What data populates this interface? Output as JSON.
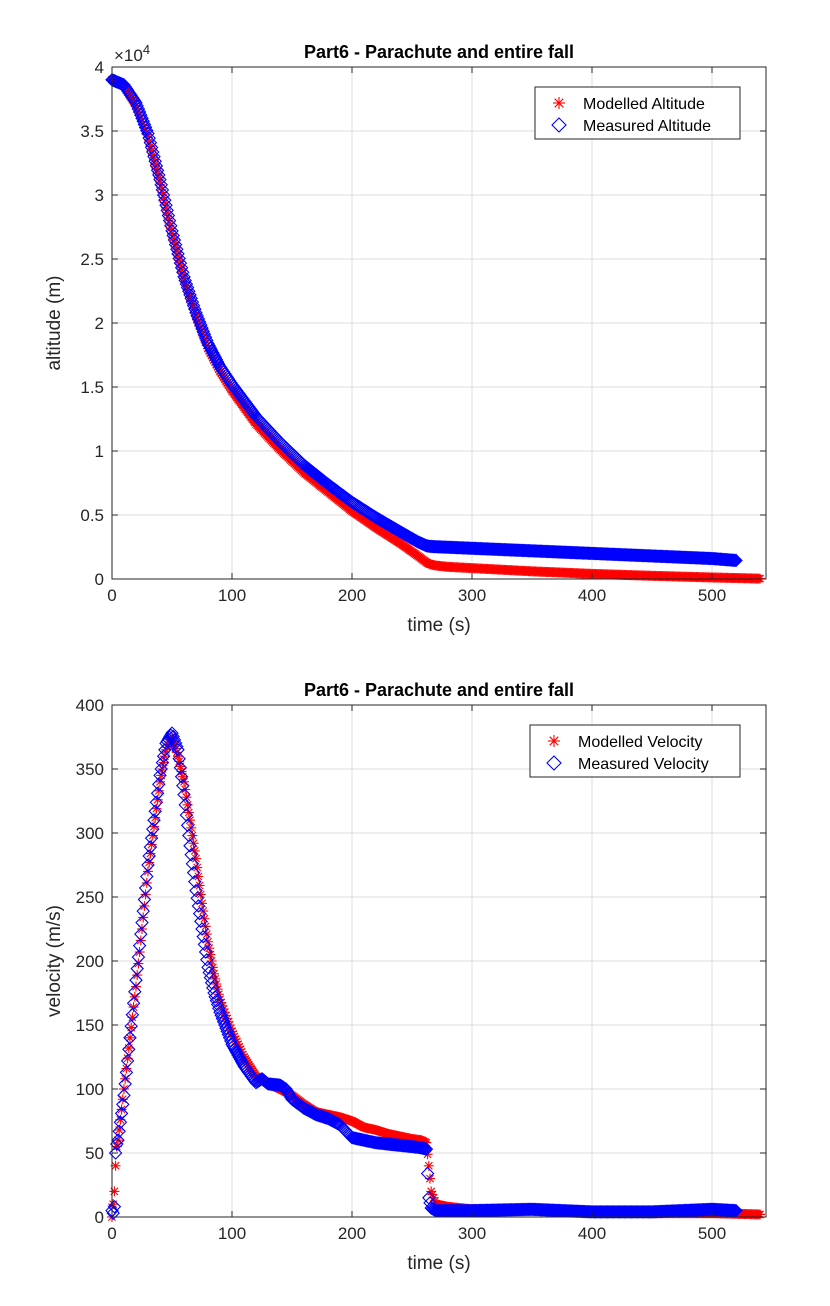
{
  "chart_data": [
    {
      "type": "scatter",
      "title": "Part6 - Parachute and entire fall",
      "xlabel": "time (s)",
      "ylabel": "altitude (m)",
      "y_exponent_label": "×10",
      "y_exponent_power": "4",
      "xlim": [
        0,
        545
      ],
      "ylim": [
        0,
        40000
      ],
      "xticks": [
        0,
        100,
        200,
        300,
        400,
        500
      ],
      "yticks": [
        0,
        5000,
        10000,
        15000,
        20000,
        25000,
        30000,
        35000,
        40000
      ],
      "xtick_labels": [
        "0",
        "100",
        "200",
        "300",
        "400",
        "500"
      ],
      "ytick_labels": [
        "0",
        "0.5",
        "1",
        "1.5",
        "2",
        "2.5",
        "3",
        "3.5",
        "4"
      ],
      "grid": true,
      "legend_position": "top-right",
      "colors": {
        "modelled": "#ff0000",
        "measured": "#0000ff"
      },
      "series": [
        {
          "name": "Modelled Altitude",
          "marker": "asterisk",
          "x": [
            0,
            10,
            20,
            30,
            40,
            50,
            60,
            70,
            80,
            90,
            100,
            120,
            140,
            160,
            180,
            200,
            220,
            240,
            255,
            262,
            265,
            270,
            280,
            300,
            350,
            400,
            450,
            500,
            540
          ],
          "y": [
            39000,
            38500,
            37000,
            34500,
            31000,
            27000,
            23500,
            20500,
            18000,
            16200,
            14700,
            12100,
            10100,
            8300,
            6800,
            5300,
            4000,
            2800,
            1800,
            1300,
            1150,
            1050,
            950,
            850,
            600,
            400,
            250,
            120,
            30
          ]
        },
        {
          "name": "Measured Altitude",
          "marker": "diamond",
          "x": [
            0,
            10,
            20,
            30,
            40,
            50,
            60,
            70,
            80,
            90,
            100,
            120,
            140,
            160,
            180,
            200,
            220,
            240,
            255,
            262,
            265,
            270,
            280,
            300,
            350,
            400,
            450,
            500,
            520
          ],
          "y": [
            39000,
            38600,
            37200,
            34800,
            31200,
            27200,
            23600,
            20800,
            18400,
            16600,
            15200,
            12700,
            10700,
            8900,
            7400,
            6000,
            4800,
            3700,
            2900,
            2600,
            2550,
            2520,
            2480,
            2400,
            2200,
            2000,
            1800,
            1600,
            1450
          ]
        }
      ]
    },
    {
      "type": "scatter",
      "title": "Part6 - Parachute and entire fall",
      "xlabel": "time (s)",
      "ylabel": "velocity (m/s)",
      "xlim": [
        0,
        545
      ],
      "ylim": [
        0,
        400
      ],
      "xticks": [
        0,
        100,
        200,
        300,
        400,
        500
      ],
      "yticks": [
        0,
        50,
        100,
        150,
        200,
        250,
        300,
        350,
        400
      ],
      "xtick_labels": [
        "0",
        "100",
        "200",
        "300",
        "400",
        "500"
      ],
      "ytick_labels": [
        "0",
        "50",
        "100",
        "150",
        "200",
        "250",
        "300",
        "350",
        "400"
      ],
      "grid": true,
      "legend_position": "top-right",
      "colors": {
        "modelled": "#ff0000",
        "measured": "#0000ff"
      },
      "series": [
        {
          "name": "Modelled Velocity",
          "marker": "asterisk",
          "x": [
            0,
            1,
            2,
            3,
            4,
            5,
            10,
            20,
            30,
            40,
            45,
            50,
            55,
            60,
            65,
            70,
            75,
            80,
            85,
            90,
            100,
            110,
            120,
            130,
            140,
            150,
            160,
            170,
            180,
            190,
            200,
            210,
            220,
            230,
            240,
            250,
            258,
            262,
            264,
            266,
            270,
            280,
            300,
            350,
            400,
            450,
            500,
            540
          ],
          "y": [
            0,
            10,
            20,
            40,
            55,
            60,
            100,
            180,
            270,
            340,
            365,
            375,
            360,
            340,
            310,
            280,
            245,
            215,
            190,
            170,
            145,
            125,
            110,
            104,
            100,
            95,
            88,
            82,
            80,
            78,
            75,
            70,
            68,
            65,
            63,
            61,
            60,
            58,
            40,
            20,
            10,
            8,
            6,
            5,
            4,
            3,
            3,
            2
          ]
        },
        {
          "name": "Measured Velocity",
          "marker": "diamond",
          "x": [
            0,
            1,
            2,
            3,
            4,
            5,
            10,
            20,
            30,
            40,
            45,
            50,
            55,
            60,
            65,
            70,
            75,
            80,
            85,
            90,
            100,
            110,
            120,
            125,
            130,
            140,
            145,
            150,
            160,
            170,
            180,
            190,
            200,
            210,
            220,
            230,
            240,
            250,
            258,
            262,
            264,
            266,
            270,
            280,
            300,
            350,
            400,
            450,
            500,
            520
          ],
          "y": [
            5,
            3,
            8,
            50,
            57,
            60,
            95,
            185,
            275,
            345,
            370,
            378,
            365,
            330,
            290,
            255,
            225,
            195,
            175,
            160,
            135,
            118,
            105,
            108,
            104,
            103,
            100,
            92,
            85,
            80,
            77,
            72,
            62,
            60,
            58,
            57,
            56,
            55,
            54,
            53,
            15,
            7,
            5,
            5,
            5,
            6,
            4,
            4,
            6,
            5
          ]
        }
      ]
    }
  ]
}
